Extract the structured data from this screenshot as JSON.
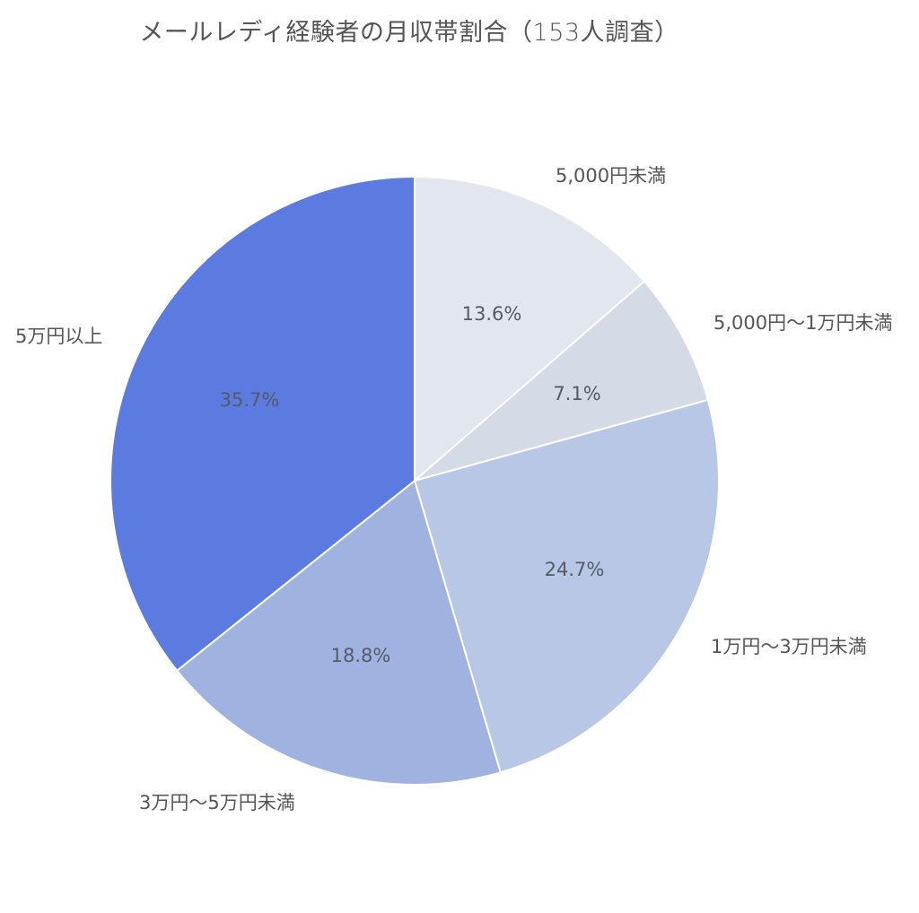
{
  "chart_data": {
    "type": "pie",
    "title": "メールレディ経験者の月収帯割合（153人調査）",
    "categories": [
      "5,000円未満",
      "5,000円〜1万円未満",
      "1万円〜3万円未満",
      "3万円〜5万円未満",
      "5万円以上"
    ],
    "values": [
      13.6,
      7.1,
      24.7,
      18.8,
      35.7
    ],
    "value_labels": [
      "13.6%",
      "7.1%",
      "24.7%",
      "18.8%",
      "35.7%"
    ],
    "colors": [
      "#e2e6ee",
      "#d4dbe6",
      "#b8c7e6",
      "#a0b3e0",
      "#5c7be0"
    ],
    "start_angle": "12 o'clock",
    "direction": "clockwise",
    "legend": "none (outside labels)"
  },
  "title": "メールレディ経験者の月収帯割合（153人調査）",
  "labels": {
    "s0": "5,000円未満",
    "s1": "5,000円〜1万円未満",
    "s2": "1万円〜3万円未満",
    "s3": "3万円〜5万円未満",
    "s4": "5万円以上"
  },
  "pcts": {
    "s0": "13.6%",
    "s1": "7.1%",
    "s2": "24.7%",
    "s3": "18.8%",
    "s4": "35.7%"
  }
}
